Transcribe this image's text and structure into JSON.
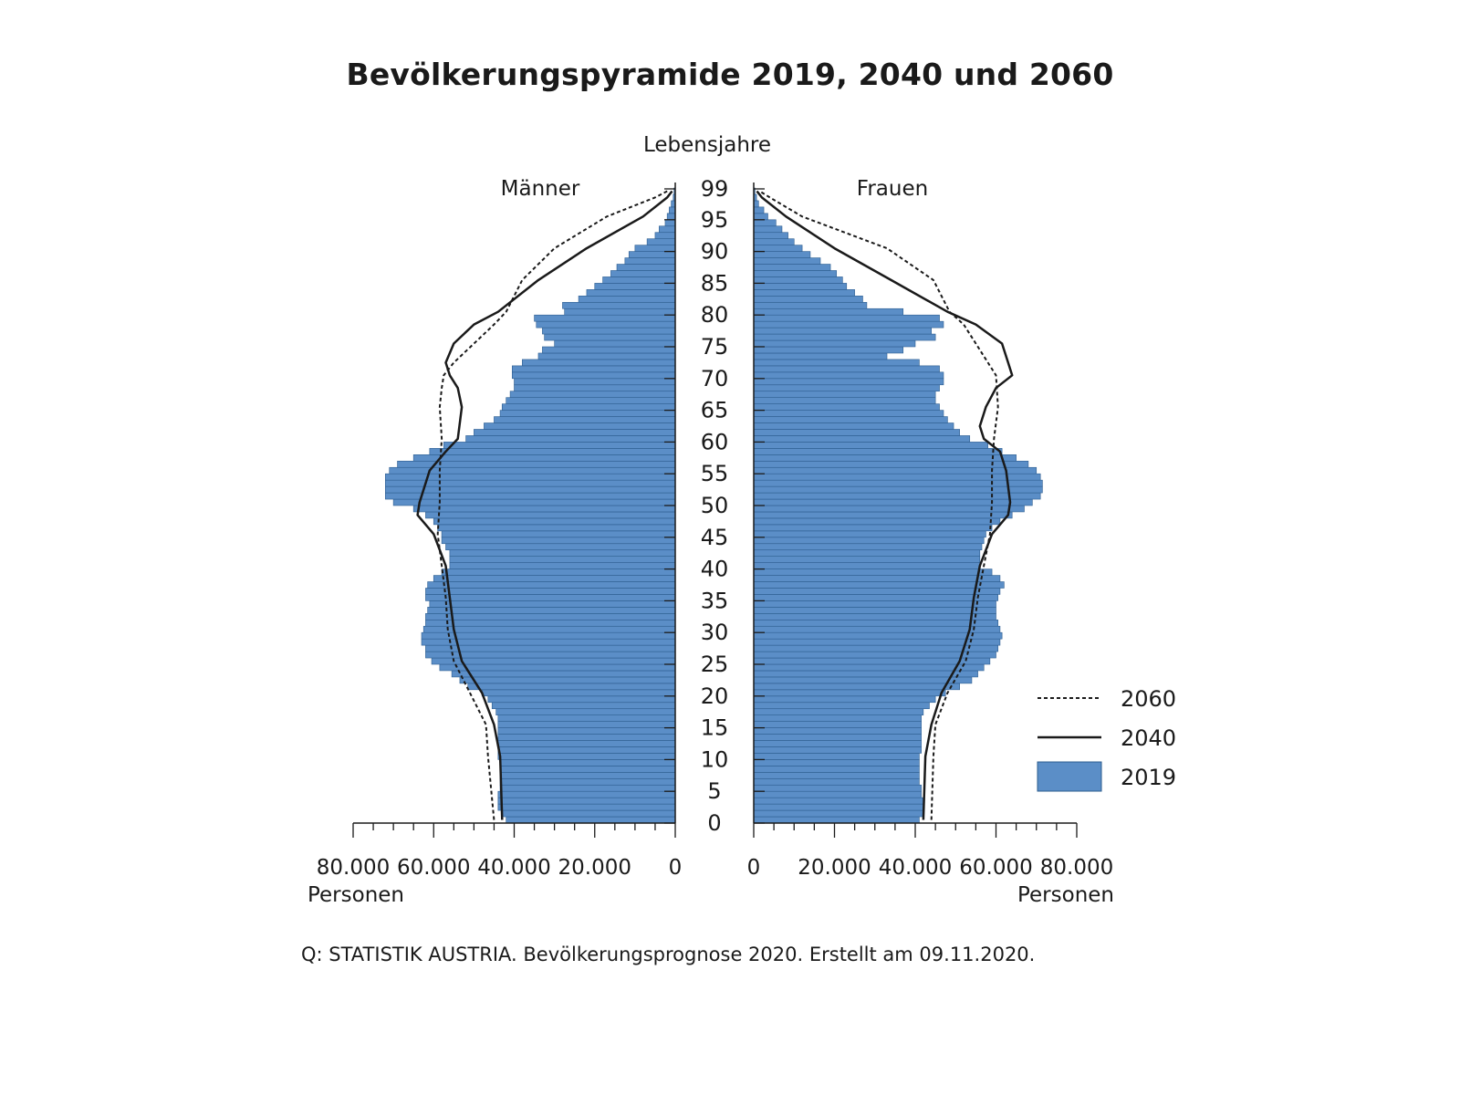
{
  "title": "Bevölkerungspyramide 2019, 2040 und 2060",
  "source": "Q: STATISTIK AUSTRIA. Bevölkerungsprognose 2020. Erstellt am 09.11.2020.",
  "colors": {
    "bar": "#5b8ec7",
    "bar_edge": "#2d5d8f",
    "line": "#1a1a1a"
  },
  "chart_data": {
    "type": "bar",
    "orientation": "horizontal-pyramid",
    "title": "Bevölkerungspyramide 2019, 2040 und 2060",
    "age_axis_label": "Lebensjahre",
    "left_label": "Männer",
    "right_label": "Frauen",
    "value_axis_label": "Personen",
    "xlim": [
      0,
      80000
    ],
    "age_range": [
      0,
      99
    ],
    "age_ticks": [
      "0",
      "5",
      "10",
      "15",
      "20",
      "25",
      "30",
      "35",
      "40",
      "45",
      "50",
      "55",
      "60",
      "65",
      "70",
      "75",
      "80",
      "85",
      "90",
      "95",
      "99"
    ],
    "x_ticks_left": [
      "80.000",
      "60.000",
      "40.000",
      "20.000",
      "0"
    ],
    "x_ticks_right": [
      "0",
      "20.000",
      "40.000",
      "60.000",
      "80.000"
    ],
    "legend": [
      "2060",
      "2040",
      "2019"
    ],
    "legend_position": "right",
    "series": [
      {
        "name": "2019",
        "style": "bars",
        "men": [
          42000,
          43000,
          44000,
          44000,
          44000,
          43500,
          43500,
          43500,
          43500,
          43500,
          44000,
          44000,
          44000,
          44000,
          44000,
          44000,
          44000,
          44500,
          45500,
          46500,
          48000,
          51500,
          53500,
          55500,
          58500,
          60500,
          62000,
          62000,
          63000,
          63000,
          62500,
          62000,
          62000,
          61500,
          61000,
          62000,
          62000,
          61500,
          60000,
          58000,
          56000,
          56000,
          56000,
          57000,
          58000,
          58000,
          59000,
          60000,
          62000,
          65000,
          70000,
          72000,
          72000,
          72000,
          72000,
          71000,
          69000,
          65000,
          61000,
          57500,
          52000,
          50000,
          47500,
          45000,
          43500,
          43000,
          42000,
          41000,
          40000,
          40000,
          40500,
          40500,
          38000,
          34000,
          33000,
          30000,
          32500,
          33000,
          34500,
          35000,
          27500,
          28000,
          24000,
          22000,
          20000,
          18000,
          16000,
          14500,
          12500,
          11500,
          10000,
          7000,
          5000,
          4000,
          2500,
          2000,
          1500,
          1000,
          500,
          300
        ],
        "women": [
          41000,
          42000,
          42000,
          42000,
          41500,
          41500,
          41000,
          41000,
          41000,
          41000,
          41000,
          41500,
          41500,
          41500,
          41500,
          41500,
          41500,
          42000,
          43500,
          45000,
          47500,
          51000,
          54000,
          55500,
          57000,
          58500,
          60000,
          60500,
          61000,
          61500,
          61000,
          60500,
          60000,
          60000,
          60000,
          60500,
          61000,
          62000,
          61000,
          59000,
          56000,
          56000,
          56000,
          56500,
          57000,
          57500,
          59000,
          61000,
          64000,
          67000,
          69000,
          71000,
          71500,
          71500,
          71000,
          70000,
          68000,
          65000,
          61500,
          58000,
          53500,
          51000,
          49500,
          48000,
          47000,
          46000,
          45000,
          45000,
          46000,
          47000,
          47000,
          46000,
          41000,
          33000,
          37000,
          40000,
          45000,
          44000,
          47000,
          46000,
          37000,
          28000,
          27000,
          25000,
          23000,
          22000,
          20500,
          19000,
          16500,
          14000,
          12000,
          10000,
          8500,
          7000,
          5500,
          3500,
          2500,
          1200,
          700,
          300
        ]
      },
      {
        "name": "2040",
        "style": "solid",
        "men": [
          [
            0,
            43000
          ],
          [
            10,
            43500
          ],
          [
            15,
            45000
          ],
          [
            20,
            48000
          ],
          [
            25,
            53000
          ],
          [
            30,
            55000
          ],
          [
            35,
            56000
          ],
          [
            40,
            57000
          ],
          [
            45,
            60000
          ],
          [
            48,
            64000
          ],
          [
            50,
            63500
          ],
          [
            55,
            61000
          ],
          [
            58,
            57000
          ],
          [
            60,
            54000
          ],
          [
            65,
            53000
          ],
          [
            68,
            54000
          ],
          [
            70,
            56000
          ],
          [
            72,
            57000
          ],
          [
            75,
            55000
          ],
          [
            78,
            50000
          ],
          [
            80,
            44000
          ],
          [
            85,
            34000
          ],
          [
            90,
            22000
          ],
          [
            95,
            8000
          ],
          [
            98,
            2000
          ],
          [
            99,
            800
          ]
        ],
        "women": [
          [
            0,
            42000
          ],
          [
            10,
            42500
          ],
          [
            15,
            44000
          ],
          [
            20,
            46500
          ],
          [
            25,
            51000
          ],
          [
            30,
            53500
          ],
          [
            35,
            54500
          ],
          [
            40,
            56000
          ],
          [
            45,
            59000
          ],
          [
            48,
            63000
          ],
          [
            50,
            63500
          ],
          [
            55,
            62500
          ],
          [
            58,
            61000
          ],
          [
            60,
            57000
          ],
          [
            62,
            56000
          ],
          [
            65,
            57500
          ],
          [
            68,
            60000
          ],
          [
            70,
            64000
          ],
          [
            72,
            63000
          ],
          [
            75,
            61500
          ],
          [
            78,
            55000
          ],
          [
            80,
            48000
          ],
          [
            85,
            34000
          ],
          [
            90,
            20000
          ],
          [
            95,
            8000
          ],
          [
            98,
            2000
          ],
          [
            99,
            800
          ]
        ]
      },
      {
        "name": "2060",
        "style": "dotted",
        "men": [
          [
            0,
            45000
          ],
          [
            10,
            46500
          ],
          [
            15,
            47000
          ],
          [
            20,
            51000
          ],
          [
            25,
            55000
          ],
          [
            30,
            56500
          ],
          [
            35,
            57000
          ],
          [
            40,
            58000
          ],
          [
            45,
            59000
          ],
          [
            50,
            58500
          ],
          [
            55,
            58500
          ],
          [
            60,
            58000
          ],
          [
            65,
            58500
          ],
          [
            68,
            58000
          ],
          [
            70,
            57500
          ],
          [
            72,
            55000
          ],
          [
            75,
            50000
          ],
          [
            78,
            45000
          ],
          [
            80,
            42000
          ],
          [
            85,
            38000
          ],
          [
            90,
            30000
          ],
          [
            95,
            17000
          ],
          [
            98,
            5000
          ],
          [
            99,
            2000
          ]
        ],
        "women": [
          [
            0,
            44000
          ],
          [
            10,
            44500
          ],
          [
            15,
            45000
          ],
          [
            20,
            48000
          ],
          [
            25,
            52500
          ],
          [
            30,
            54500
          ],
          [
            35,
            55500
          ],
          [
            40,
            57000
          ],
          [
            45,
            58500
          ],
          [
            50,
            59000
          ],
          [
            55,
            59000
          ],
          [
            60,
            59500
          ],
          [
            65,
            60500
          ],
          [
            70,
            60000
          ],
          [
            75,
            55000
          ],
          [
            78,
            52000
          ],
          [
            80,
            48500
          ],
          [
            85,
            44500
          ],
          [
            90,
            33000
          ],
          [
            95,
            12000
          ],
          [
            98,
            4000
          ],
          [
            99,
            1500
          ]
        ]
      }
    ]
  }
}
